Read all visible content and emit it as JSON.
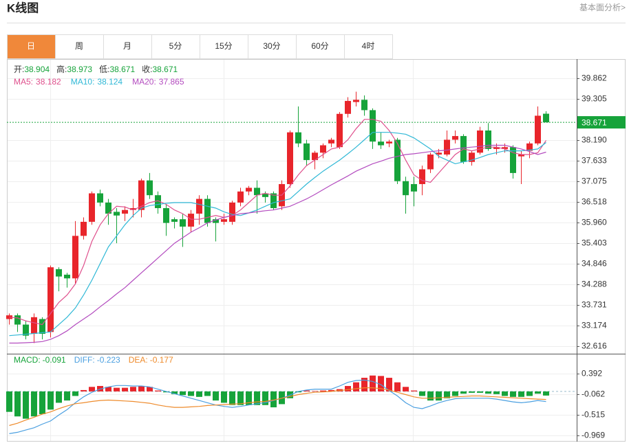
{
  "header": {
    "title": "K线图",
    "link": "基本面分析>"
  },
  "tabs": [
    "日",
    "周",
    "月",
    "5分",
    "15分",
    "30分",
    "60分",
    "4时"
  ],
  "active_tab": 0,
  "chart_data": [
    {
      "type": "candlestick",
      "summary_labels": [
        "开:",
        "高:",
        "低:",
        "收:"
      ],
      "up_color": "#e8252b",
      "down_color": "#16a33a",
      "price_line": true,
      "open": [
        33.35,
        33.45,
        33.2,
        32.95,
        33.35,
        33.0,
        34.7,
        34.55,
        34.45,
        35.6,
        35.98,
        36.75,
        36.5,
        36.25,
        36.2,
        36.3,
        36.3,
        37.1,
        36.7,
        36.35,
        36.05,
        36.05,
        35.85,
        36.2,
        36.6,
        36.05,
        35.98,
        35.98,
        36.5,
        36.8,
        36.9,
        36.75,
        36.75,
        36.4,
        37.0,
        38.4,
        38.1,
        37.65,
        37.85,
        38.1,
        38.0,
        38.9,
        39.22,
        39.28,
        39.0,
        38.15,
        38.1,
        38.2,
        37.08,
        37.0,
        37.0,
        37.4,
        37.8,
        37.8,
        38.2,
        38.3,
        37.6,
        37.85,
        38.45,
        37.95,
        37.95,
        38.0,
        37.75,
        37.9,
        38.1,
        38.904
      ],
      "high": [
        33.5,
        33.5,
        33.3,
        33.5,
        33.4,
        34.8,
        34.75,
        34.6,
        36.0,
        36.1,
        36.8,
        36.85,
        36.6,
        36.35,
        36.4,
        36.6,
        37.15,
        37.3,
        36.8,
        36.45,
        36.1,
        36.2,
        36.3,
        36.7,
        36.7,
        36.1,
        36.2,
        36.55,
        36.9,
        36.95,
        37.1,
        36.8,
        36.8,
        37.1,
        38.45,
        39.1,
        38.2,
        37.9,
        38.1,
        38.25,
        38.95,
        39.35,
        39.5,
        39.4,
        39.05,
        38.4,
        38.2,
        38.25,
        37.2,
        37.2,
        37.5,
        37.85,
        37.95,
        38.45,
        38.45,
        38.35,
        37.9,
        38.55,
        38.65,
        38.1,
        38.1,
        38.05,
        37.9,
        38.15,
        39.1,
        38.973
      ],
      "low": [
        33.2,
        33.0,
        32.8,
        32.7,
        32.8,
        32.85,
        34.1,
        34.2,
        34.3,
        35.5,
        35.9,
        36.4,
        35.9,
        35.4,
        36.0,
        36.1,
        36.1,
        36.6,
        36.2,
        35.6,
        35.8,
        35.3,
        35.7,
        35.9,
        35.85,
        35.45,
        35.9,
        35.9,
        36.4,
        36.7,
        36.2,
        36.5,
        36.3,
        36.3,
        36.9,
        38.0,
        37.5,
        37.4,
        37.7,
        38.0,
        37.95,
        38.8,
        39.1,
        38.85,
        37.95,
        37.95,
        38.0,
        37.0,
        36.2,
        36.4,
        36.7,
        37.3,
        37.7,
        37.75,
        38.1,
        37.55,
        37.5,
        37.8,
        37.9,
        37.8,
        37.85,
        37.15,
        37.0,
        37.7,
        38.05,
        38.671
      ],
      "close": [
        33.45,
        33.2,
        32.9,
        33.4,
        32.95,
        34.75,
        34.5,
        34.45,
        35.6,
        35.98,
        36.75,
        36.5,
        36.2,
        36.15,
        36.3,
        36.35,
        37.1,
        36.7,
        36.35,
        35.95,
        35.98,
        35.85,
        36.2,
        36.6,
        35.95,
        35.95,
        36.05,
        36.5,
        36.8,
        36.9,
        36.7,
        36.65,
        36.35,
        37.0,
        38.4,
        38.1,
        37.65,
        37.85,
        38.05,
        38.2,
        38.9,
        39.25,
        39.28,
        39.0,
        38.15,
        38.05,
        38.15,
        37.08,
        36.7,
        36.8,
        37.4,
        37.8,
        37.85,
        38.2,
        38.3,
        37.6,
        37.85,
        38.45,
        37.95,
        38.0,
        38.0,
        37.3,
        37.8,
        38.1,
        38.85,
        38.671
      ],
      "series": [
        {
          "name": "MA5:",
          "color": "#df4f8c",
          "values": [
            33.4,
            33.38,
            33.3,
            33.25,
            33.2,
            33.5,
            33.8,
            34.0,
            34.3,
            34.8,
            35.45,
            35.9,
            36.2,
            36.4,
            36.38,
            36.3,
            36.4,
            36.5,
            36.55,
            36.45,
            36.3,
            36.2,
            36.05,
            36.05,
            36.1,
            36.15,
            36.1,
            36.15,
            36.3,
            36.5,
            36.7,
            36.75,
            36.7,
            36.7,
            36.95,
            37.25,
            37.5,
            37.65,
            37.8,
            37.95,
            38.0,
            38.2,
            38.5,
            38.75,
            38.75,
            38.7,
            38.45,
            38.1,
            37.65,
            37.25,
            37.1,
            37.05,
            37.3,
            37.55,
            37.8,
            37.95,
            37.9,
            37.95,
            38.0,
            38.0,
            37.95,
            37.85,
            37.8,
            37.8,
            37.85,
            38.182
          ]
        },
        {
          "name": "MA10:",
          "color": "#2fb8d6",
          "values": [
            32.9,
            32.92,
            32.94,
            32.96,
            32.98,
            33.0,
            33.2,
            33.4,
            33.65,
            34.0,
            34.4,
            34.85,
            35.3,
            35.6,
            35.9,
            36.15,
            36.35,
            36.42,
            36.45,
            36.48,
            36.5,
            36.5,
            36.5,
            36.45,
            36.4,
            36.35,
            36.25,
            36.18,
            36.15,
            36.22,
            36.3,
            36.4,
            36.5,
            36.55,
            36.6,
            36.8,
            37.0,
            37.18,
            37.35,
            37.5,
            37.65,
            37.82,
            38.0,
            38.2,
            38.4,
            38.4,
            38.4,
            38.38,
            38.35,
            38.25,
            38.1,
            37.95,
            37.75,
            37.65,
            37.55,
            37.6,
            37.65,
            37.72,
            37.8,
            37.85,
            37.9,
            37.9,
            37.9,
            37.92,
            37.95,
            38.124
          ]
        },
        {
          "name": "MA20:",
          "color": "#b34bbf",
          "values": [
            32.7,
            32.7,
            32.71,
            32.72,
            32.74,
            32.8,
            32.9,
            33.03,
            33.2,
            33.35,
            33.5,
            33.68,
            33.85,
            34.03,
            34.2,
            34.4,
            34.6,
            34.8,
            35.0,
            35.2,
            35.4,
            35.55,
            35.7,
            35.82,
            35.95,
            36.03,
            36.1,
            36.15,
            36.2,
            36.22,
            36.25,
            36.28,
            36.3,
            36.35,
            36.4,
            36.5,
            36.6,
            36.72,
            36.85,
            36.98,
            37.1,
            37.22,
            37.35,
            37.45,
            37.55,
            37.62,
            37.7,
            37.75,
            37.8,
            37.82,
            37.85,
            37.88,
            37.9,
            37.92,
            37.95,
            37.98,
            38.0,
            38.02,
            38.05,
            38.05,
            38.05,
            38.0,
            37.95,
            37.88,
            37.8,
            37.865
          ]
        }
      ],
      "ylim": [
        32.412,
        40.382
      ],
      "yticks": [
        39.862,
        39.305,
        {
          "value": 38.19,
          "label": "38.190"
        },
        37.633,
        37.075,
        36.518,
        {
          "value": 35.96,
          "label": "35.960"
        },
        35.403,
        34.846,
        34.288,
        33.731,
        33.174,
        32.616
      ]
    },
    {
      "type": "macd",
      "up_color": "#e8252b",
      "down_color": "#16a33a",
      "zero_line": true,
      "histogram": {
        "name": "MACD:",
        "color": "#16a33a",
        "values": [
          -0.45,
          -0.55,
          -0.6,
          -0.55,
          -0.5,
          -0.4,
          -0.25,
          -0.2,
          -0.1,
          0.03,
          0.1,
          0.12,
          0.1,
          0.08,
          0.08,
          0.1,
          0.12,
          0.1,
          0.02,
          -0.02,
          -0.06,
          -0.08,
          -0.1,
          -0.12,
          -0.1,
          -0.2,
          -0.25,
          -0.3,
          -0.3,
          -0.3,
          -0.3,
          -0.3,
          -0.35,
          -0.28,
          -0.15,
          -0.02,
          0.02,
          0.01,
          0.02,
          0.03,
          0.05,
          0.12,
          0.2,
          0.3,
          0.35,
          0.34,
          0.3,
          0.2,
          0.1,
          0.02,
          -0.1,
          -0.2,
          -0.2,
          -0.15,
          -0.1,
          -0.05,
          -0.03,
          -0.03,
          -0.05,
          -0.06,
          -0.1,
          -0.12,
          -0.12,
          -0.1,
          -0.05,
          -0.091
        ]
      },
      "series": [
        {
          "name": "DIFF:",
          "color": "#4a9fe0",
          "values": [
            -0.93,
            -0.9,
            -0.85,
            -0.8,
            -0.72,
            -0.65,
            -0.52,
            -0.4,
            -0.25,
            -0.12,
            -0.02,
            0.05,
            0.1,
            0.13,
            0.13,
            0.12,
            0.12,
            0.1,
            0.05,
            0.0,
            -0.05,
            -0.1,
            -0.15,
            -0.2,
            -0.25,
            -0.3,
            -0.33,
            -0.35,
            -0.33,
            -0.3,
            -0.27,
            -0.25,
            -0.2,
            -0.15,
            -0.08,
            0.0,
            0.03,
            0.05,
            0.05,
            0.05,
            0.12,
            0.2,
            0.24,
            0.25,
            0.22,
            0.15,
            0.02,
            -0.1,
            -0.25,
            -0.35,
            -0.38,
            -0.32,
            -0.25,
            -0.2,
            -0.16,
            -0.15,
            -0.15,
            -0.15,
            -0.15,
            -0.17,
            -0.2,
            -0.23,
            -0.25,
            -0.23,
            -0.2,
            -0.223
          ]
        },
        {
          "name": "DEA:",
          "color": "#ee8a2a",
          "values": [
            -0.75,
            -0.7,
            -0.63,
            -0.57,
            -0.5,
            -0.45,
            -0.38,
            -0.32,
            -0.27,
            -0.25,
            -0.22,
            -0.2,
            -0.19,
            -0.2,
            -0.21,
            -0.22,
            -0.24,
            -0.26,
            -0.3,
            -0.33,
            -0.35,
            -0.35,
            -0.34,
            -0.33,
            -0.31,
            -0.3,
            -0.29,
            -0.28,
            -0.27,
            -0.25,
            -0.23,
            -0.22,
            -0.19,
            -0.15,
            -0.11,
            -0.07,
            -0.04,
            -0.02,
            -0.01,
            0.0,
            0.02,
            0.04,
            0.06,
            0.08,
            0.08,
            0.06,
            0.03,
            -0.02,
            -0.07,
            -0.12,
            -0.15,
            -0.15,
            -0.14,
            -0.13,
            -0.12,
            -0.11,
            -0.1,
            -0.1,
            -0.11,
            -0.12,
            -0.13,
            -0.14,
            -0.15,
            -0.16,
            -0.17,
            -0.177
          ]
        }
      ],
      "ylim": [
        -1.105,
        0.83
      ],
      "yticks": [
        0.392,
        -0.062,
        -0.515,
        -0.969
      ]
    }
  ]
}
